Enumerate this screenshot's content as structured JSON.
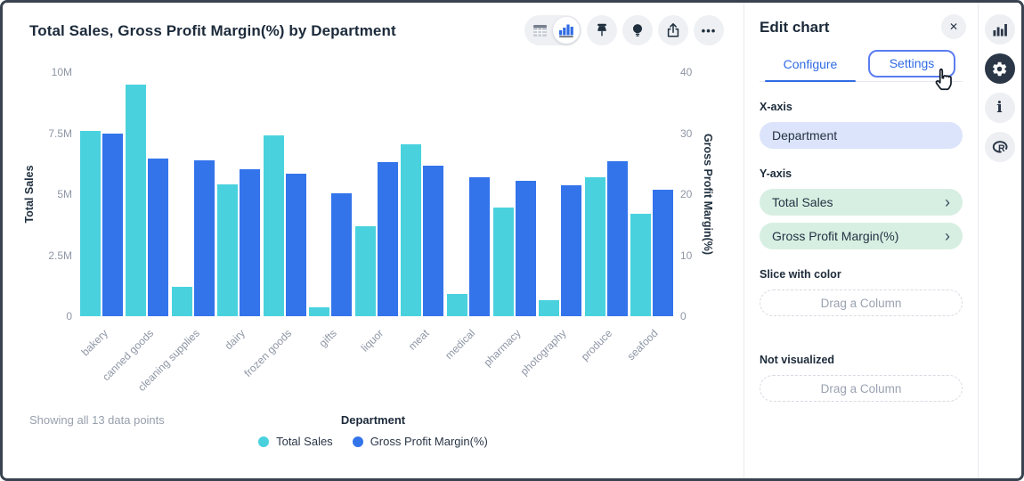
{
  "chart": {
    "title": "Total Sales, Gross Profit Margin(%) by Department",
    "footer_note": "Showing all 13 data points",
    "legend_title": "Department",
    "legend": [
      {
        "label": "Total Sales",
        "color": "#49d2de"
      },
      {
        "label": "Gross Profit Margin(%)",
        "color": "#3374eb"
      }
    ]
  },
  "chart_data": {
    "type": "bar",
    "categories": [
      "bakery",
      "canned goods",
      "cleaning supplies",
      "dairy",
      "frozen goods",
      "gifts",
      "liquor",
      "meat",
      "medical",
      "pharmacy",
      "photography",
      "produce",
      "seafood"
    ],
    "series": [
      {
        "name": "Total Sales",
        "axis": "left",
        "unit": "M",
        "color": "#49d2de",
        "values": [
          7.6,
          9.5,
          1.2,
          5.4,
          7.4,
          0.35,
          3.7,
          7.05,
          0.9,
          4.45,
          0.65,
          5.7,
          4.2
        ]
      },
      {
        "name": "Gross Profit Margin(%)",
        "axis": "right",
        "unit": "%",
        "color": "#3374eb",
        "values": [
          30,
          25.8,
          25.6,
          24.1,
          23.4,
          20.2,
          25.3,
          24.7,
          22.8,
          22.2,
          21.4,
          25.4,
          20.8
        ]
      }
    ],
    "left_axis": {
      "label": "Total Sales",
      "ticks": [
        "10M",
        "7.5M",
        "5M",
        "2.5M",
        "0"
      ],
      "max": 10
    },
    "right_axis": {
      "label": "Gross Profit Margin(%)",
      "ticks": [
        "40",
        "30",
        "20",
        "10",
        "0"
      ],
      "max": 40
    },
    "xlabel": "Department",
    "grid": false,
    "legend_position": "bottom"
  },
  "toolbar": {
    "more_label": "•••"
  },
  "panel": {
    "title": "Edit chart",
    "close_label": "✕",
    "tabs": [
      {
        "label": "Configure",
        "active": true
      },
      {
        "label": "Settings",
        "active": false
      }
    ],
    "x_axis": {
      "label": "X-axis",
      "value": "Department"
    },
    "y_axis": {
      "label": "Y-axis",
      "values": [
        "Total Sales",
        "Gross Profit Margin(%)"
      ],
      "chevron": "›"
    },
    "slice": {
      "label": "Slice with color",
      "placeholder": "Drag a Column"
    },
    "not_visualized": {
      "label": "Not visualized",
      "placeholder": "Drag a Column"
    }
  },
  "colors": {
    "series_total_sales": "#49d2de",
    "series_gross_profit_margin": "#3374eb",
    "accent_blue": "#2f6be4",
    "focus_ring": "#5b7df0",
    "x_pill_bg": "#dbe4fa",
    "y_pill_bg": "#d7efe2",
    "rail_active_bg": "#2b3647"
  }
}
